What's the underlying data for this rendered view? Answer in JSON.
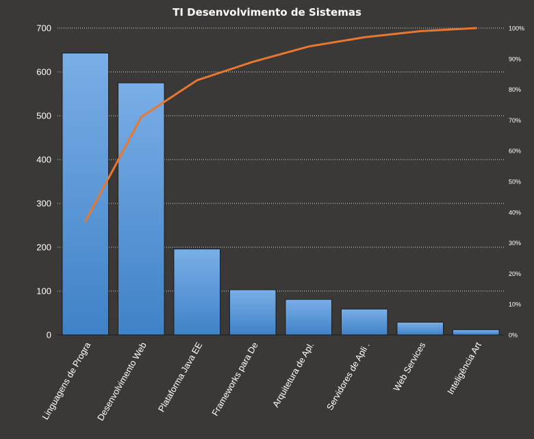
{
  "chart_data": {
    "type": "bar",
    "title": "TI Desenvolvimento  de Sistemas",
    "categories": [
      "Linguagens de Progra",
      "Desenvolvimento Web",
      "Plataforma Java EE",
      "Frameworks  para De",
      "Arquitetura  de Apl.",
      "Servidores  de Apli .",
      "Web Services",
      "Inteligência Art"
    ],
    "series": [
      {
        "type": "bar",
        "values": [
          643,
          575,
          196,
          103,
          81,
          59,
          29,
          12
        ]
      },
      {
        "type": "line",
        "axis": "secondary",
        "values": [
          0.37,
          0.71,
          0.83,
          0.89,
          0.94,
          0.97,
          0.99,
          1.0
        ]
      }
    ],
    "ylim": [
      0,
      700
    ],
    "yticks": [
      0,
      100,
      200,
      300,
      400,
      500,
      600,
      700
    ],
    "y2lim": [
      0,
      1
    ],
    "y2ticks": [
      "0%",
      "10%",
      "20%",
      "30%",
      "40%",
      "50%",
      "60%",
      "70%",
      "80%",
      "90%",
      "100%"
    ],
    "grid": true,
    "legend": "none",
    "colors": {
      "background": "#3b3938",
      "bar_top": "#7aaee6",
      "bar_bottom": "#3f82c7",
      "line": "#e8782f",
      "text": "#ffffff",
      "grid": "#d8d8d8"
    }
  }
}
